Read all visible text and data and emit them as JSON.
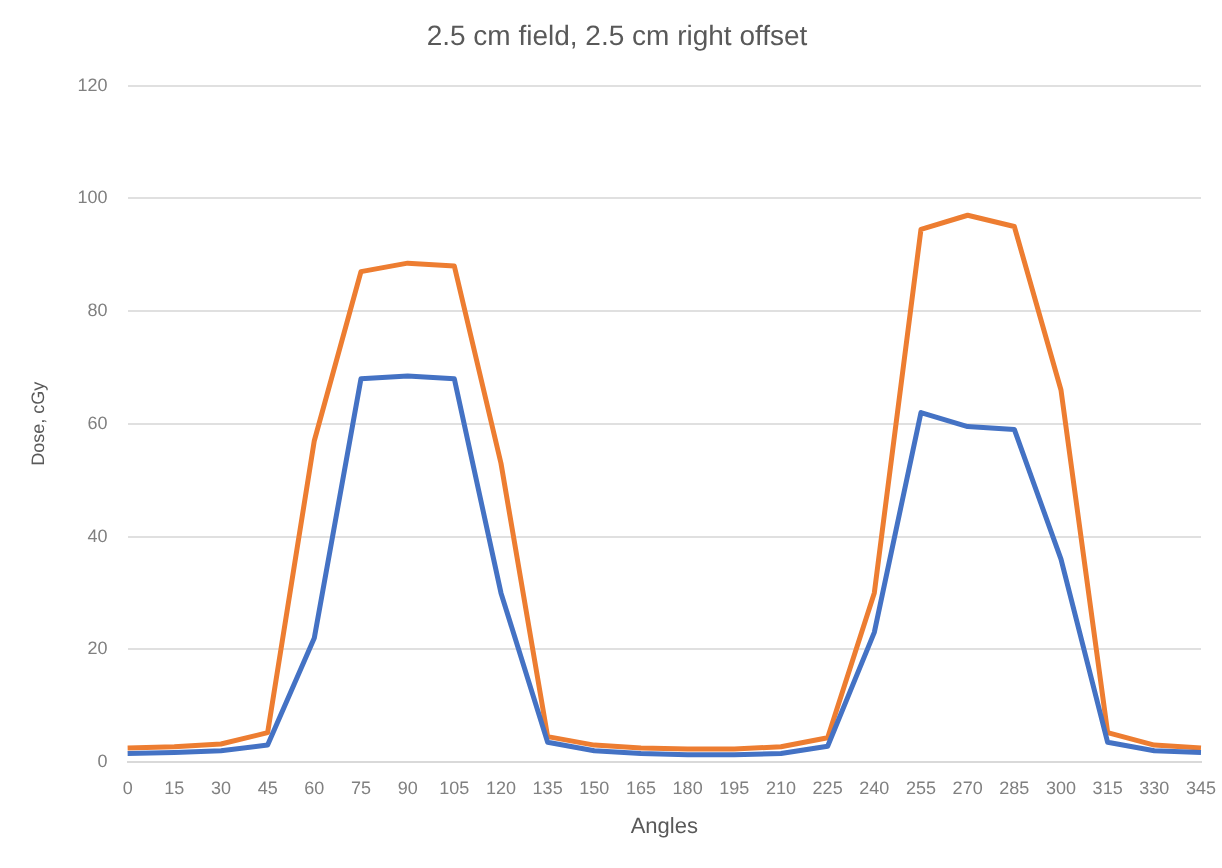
{
  "chart_data": {
    "type": "line",
    "title": "2.5 cm field, 2.5 cm right offset",
    "xlabel": "Angles",
    "ylabel": "Dose, cGy",
    "categories": [
      "0",
      "15",
      "30",
      "45",
      "60",
      "75",
      "90",
      "105",
      "120",
      "135",
      "150",
      "165",
      "180",
      "195",
      "210",
      "225",
      "240",
      "255",
      "270",
      "285",
      "300",
      "315",
      "330",
      "345"
    ],
    "series": [
      {
        "color": "#4472c4",
        "values": [
          1.5,
          1.7,
          2,
          3,
          22,
          68,
          68.5,
          68,
          30,
          3.5,
          2,
          1.5,
          1.3,
          1.3,
          1.5,
          2.8,
          23,
          62,
          59.5,
          59,
          36,
          3.5,
          2,
          1.7
        ]
      },
      {
        "color": "#ed7d31",
        "values": [
          2.5,
          2.7,
          3.2,
          5.2,
          57,
          87,
          88.5,
          88,
          53,
          4.5,
          3,
          2.5,
          2.3,
          2.3,
          2.7,
          4.3,
          30,
          94.5,
          97,
          95,
          66,
          5.2,
          3,
          2.5
        ]
      }
    ],
    "ylim": [
      0,
      120
    ],
    "yticks": [
      0,
      20,
      40,
      60,
      80,
      100,
      120
    ],
    "grid": "y",
    "legend": false,
    "marker": "none",
    "line_style": "solid"
  }
}
